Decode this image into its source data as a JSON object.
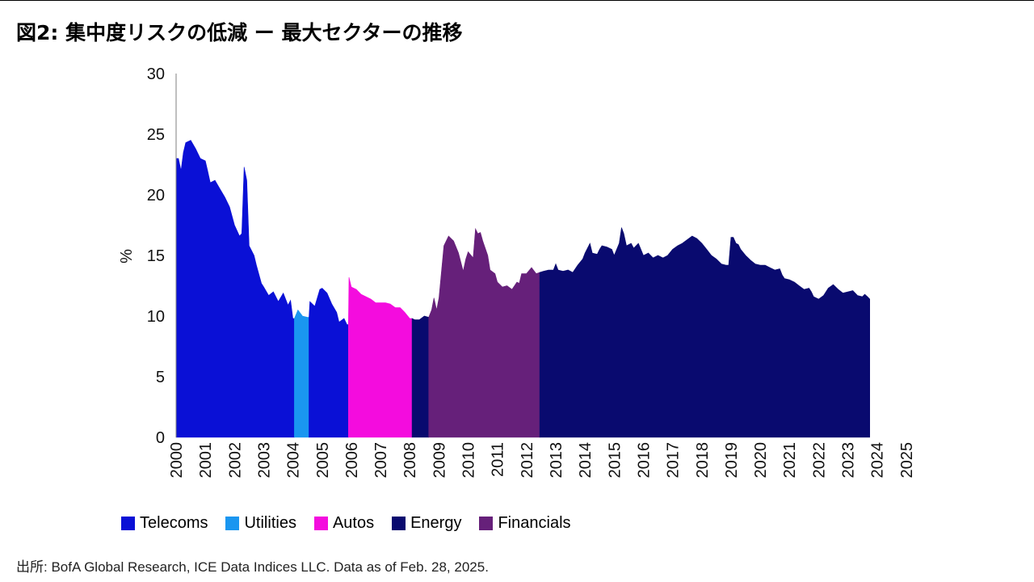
{
  "title": "図2: 集中度リスクの低減 ー 最大セクターの推移",
  "source": "出所: BofA Global Research, ICE Data Indices LLC. Data as of Feb. 28, 2025.",
  "chart_data": {
    "type": "area",
    "ylabel": "%",
    "ylim": [
      0,
      30
    ],
    "yticks": [
      "0",
      "5",
      "10",
      "15",
      "20",
      "25",
      "30"
    ],
    "xlim": [
      2000,
      2025.17
    ],
    "xticks": [
      "2000",
      "2001",
      "2002",
      "2003",
      "2004",
      "2005",
      "2006",
      "2007",
      "2008",
      "2009",
      "2010",
      "2011",
      "2012",
      "2013",
      "2014",
      "2015",
      "2016",
      "2017",
      "2018",
      "2019",
      "2020",
      "2021",
      "2022",
      "2023",
      "2024",
      "2025"
    ],
    "grid": false,
    "legend_position": "bottom-left",
    "series_colors": {
      "Telecoms": "#0a10d6",
      "Utilities": "#1a96f0",
      "Autos": "#f40cde",
      "Energy": "#090a6f",
      "Financials": "#66207a"
    },
    "legend": [
      {
        "name": "Telecoms",
        "color": "#0a10d6"
      },
      {
        "name": "Utilities",
        "color": "#1a96f0"
      },
      {
        "name": "Autos",
        "color": "#f40cde"
      },
      {
        "name": "Energy",
        "color": "#090a6f"
      },
      {
        "name": "Financials",
        "color": "#66207a"
      }
    ],
    "segments": [
      {
        "sector": "Telecoms",
        "points": [
          [
            2000.0,
            23.0
          ],
          [
            2000.08,
            23.0
          ],
          [
            2000.17,
            22.0
          ],
          [
            2000.25,
            23.5
          ],
          [
            2000.33,
            24.3
          ],
          [
            2000.5,
            24.5
          ],
          [
            2000.67,
            23.8
          ],
          [
            2000.83,
            23.0
          ],
          [
            2001.0,
            22.8
          ],
          [
            2001.08,
            22.0
          ],
          [
            2001.17,
            21.0
          ],
          [
            2001.33,
            21.2
          ],
          [
            2001.5,
            20.5
          ],
          [
            2001.67,
            19.8
          ],
          [
            2001.83,
            19.0
          ],
          [
            2002.0,
            17.5
          ],
          [
            2002.17,
            16.6
          ],
          [
            2002.25,
            16.8
          ],
          [
            2002.33,
            22.3
          ],
          [
            2002.42,
            21.2
          ],
          [
            2002.5,
            15.8
          ],
          [
            2002.67,
            15.0
          ],
          [
            2002.75,
            14.2
          ],
          [
            2002.92,
            12.7
          ],
          [
            2003.0,
            12.4
          ],
          [
            2003.17,
            11.7
          ],
          [
            2003.33,
            12.0
          ],
          [
            2003.5,
            11.2
          ],
          [
            2003.67,
            11.9
          ],
          [
            2003.83,
            10.9
          ],
          [
            2003.92,
            11.3
          ],
          [
            2004.0,
            9.8
          ],
          [
            2004.05,
            9.8
          ]
        ]
      },
      {
        "sector": "Utilities",
        "points": [
          [
            2004.05,
            9.8
          ],
          [
            2004.17,
            10.5
          ],
          [
            2004.33,
            10.0
          ],
          [
            2004.5,
            9.9
          ],
          [
            2004.55,
            9.9
          ]
        ]
      },
      {
        "sector": "Telecoms",
        "points": [
          [
            2004.55,
            9.9
          ],
          [
            2004.58,
            11.2
          ],
          [
            2004.75,
            10.8
          ],
          [
            2004.92,
            12.2
          ],
          [
            2005.0,
            12.3
          ],
          [
            2005.17,
            11.9
          ],
          [
            2005.33,
            11.0
          ],
          [
            2005.5,
            10.3
          ],
          [
            2005.58,
            9.5
          ],
          [
            2005.75,
            9.8
          ],
          [
            2005.85,
            9.3
          ],
          [
            2005.9,
            9.3
          ]
        ]
      },
      {
        "sector": "Autos",
        "points": [
          [
            2005.9,
            9.3
          ],
          [
            2005.92,
            13.2
          ],
          [
            2006.0,
            12.4
          ],
          [
            2006.17,
            12.2
          ],
          [
            2006.33,
            11.8
          ],
          [
            2006.5,
            11.6
          ],
          [
            2006.67,
            11.4
          ],
          [
            2006.83,
            11.1
          ],
          [
            2007.0,
            11.1
          ],
          [
            2007.17,
            11.1
          ],
          [
            2007.33,
            11.0
          ],
          [
            2007.5,
            10.7
          ],
          [
            2007.67,
            10.7
          ],
          [
            2007.83,
            10.3
          ],
          [
            2008.0,
            9.8
          ],
          [
            2008.08,
            9.8
          ]
        ]
      },
      {
        "sector": "Energy",
        "points": [
          [
            2008.08,
            9.8
          ],
          [
            2008.17,
            9.7
          ],
          [
            2008.33,
            9.7
          ],
          [
            2008.5,
            10.0
          ],
          [
            2008.65,
            9.9
          ]
        ]
      },
      {
        "sector": "Financials",
        "points": [
          [
            2008.65,
            9.9
          ],
          [
            2008.75,
            10.5
          ],
          [
            2008.83,
            11.5
          ],
          [
            2008.92,
            10.5
          ],
          [
            2009.0,
            11.5
          ],
          [
            2009.17,
            15.8
          ],
          [
            2009.33,
            16.6
          ],
          [
            2009.5,
            16.2
          ],
          [
            2009.67,
            15.2
          ],
          [
            2009.83,
            13.7
          ],
          [
            2009.92,
            14.7
          ],
          [
            2010.0,
            15.3
          ],
          [
            2010.17,
            14.8
          ],
          [
            2010.25,
            17.2
          ],
          [
            2010.33,
            16.8
          ],
          [
            2010.42,
            16.9
          ],
          [
            2010.5,
            16.2
          ],
          [
            2010.67,
            15.0
          ],
          [
            2010.75,
            13.8
          ],
          [
            2010.92,
            13.5
          ],
          [
            2011.0,
            12.8
          ],
          [
            2011.17,
            12.4
          ],
          [
            2011.33,
            12.5
          ],
          [
            2011.5,
            12.2
          ],
          [
            2011.67,
            12.8
          ],
          [
            2011.75,
            12.7
          ],
          [
            2011.83,
            13.5
          ],
          [
            2012.0,
            13.5
          ],
          [
            2012.17,
            14.0
          ],
          [
            2012.33,
            13.5
          ],
          [
            2012.45,
            13.6
          ]
        ]
      },
      {
        "sector": "Energy",
        "points": [
          [
            2012.45,
            13.6
          ],
          [
            2012.58,
            13.7
          ],
          [
            2012.75,
            13.8
          ],
          [
            2012.92,
            13.8
          ],
          [
            2013.0,
            14.3
          ],
          [
            2013.08,
            13.8
          ],
          [
            2013.25,
            13.7
          ],
          [
            2013.42,
            13.8
          ],
          [
            2013.58,
            13.6
          ],
          [
            2013.75,
            14.2
          ],
          [
            2013.92,
            14.7
          ],
          [
            2014.0,
            15.2
          ],
          [
            2014.17,
            16.0
          ],
          [
            2014.25,
            15.2
          ],
          [
            2014.42,
            15.1
          ],
          [
            2014.5,
            15.5
          ],
          [
            2014.58,
            15.8
          ],
          [
            2014.75,
            15.7
          ],
          [
            2014.92,
            15.5
          ],
          [
            2015.0,
            15.0
          ],
          [
            2015.17,
            16.0
          ],
          [
            2015.25,
            17.3
          ],
          [
            2015.33,
            16.8
          ],
          [
            2015.42,
            15.8
          ],
          [
            2015.58,
            16.0
          ],
          [
            2015.67,
            15.6
          ],
          [
            2015.83,
            16.0
          ],
          [
            2016.0,
            15.0
          ],
          [
            2016.17,
            15.2
          ],
          [
            2016.33,
            14.8
          ],
          [
            2016.5,
            15.0
          ],
          [
            2016.67,
            14.8
          ],
          [
            2016.83,
            15.0
          ],
          [
            2017.0,
            15.5
          ],
          [
            2017.17,
            15.8
          ],
          [
            2017.33,
            16.0
          ],
          [
            2017.5,
            16.3
          ],
          [
            2017.67,
            16.6
          ],
          [
            2017.83,
            16.4
          ],
          [
            2018.0,
            16.0
          ],
          [
            2018.17,
            15.5
          ],
          [
            2018.33,
            15.0
          ],
          [
            2018.5,
            14.7
          ],
          [
            2018.67,
            14.3
          ],
          [
            2018.83,
            14.2
          ],
          [
            2018.92,
            14.2
          ],
          [
            2019.0,
            16.5
          ],
          [
            2019.08,
            16.5
          ],
          [
            2019.17,
            16.0
          ],
          [
            2019.25,
            15.9
          ],
          [
            2019.33,
            15.5
          ],
          [
            2019.5,
            15.0
          ],
          [
            2019.67,
            14.6
          ],
          [
            2019.83,
            14.3
          ],
          [
            2020.0,
            14.2
          ],
          [
            2020.17,
            14.2
          ],
          [
            2020.33,
            14.0
          ],
          [
            2020.5,
            13.8
          ],
          [
            2020.67,
            13.9
          ],
          [
            2020.75,
            13.4
          ],
          [
            2020.83,
            13.1
          ],
          [
            2021.0,
            13.0
          ],
          [
            2021.17,
            12.8
          ],
          [
            2021.33,
            12.5
          ],
          [
            2021.5,
            12.2
          ],
          [
            2021.67,
            12.3
          ],
          [
            2021.75,
            12.0
          ],
          [
            2021.83,
            11.6
          ],
          [
            2022.0,
            11.4
          ],
          [
            2022.17,
            11.7
          ],
          [
            2022.33,
            12.3
          ],
          [
            2022.5,
            12.6
          ],
          [
            2022.67,
            12.2
          ],
          [
            2022.83,
            11.9
          ],
          [
            2023.0,
            12.0
          ],
          [
            2023.17,
            12.1
          ],
          [
            2023.33,
            11.7
          ],
          [
            2023.5,
            11.6
          ],
          [
            2023.58,
            11.8
          ],
          [
            2023.67,
            11.6
          ],
          [
            2023.75,
            11.4
          ]
        ]
      }
    ]
  }
}
